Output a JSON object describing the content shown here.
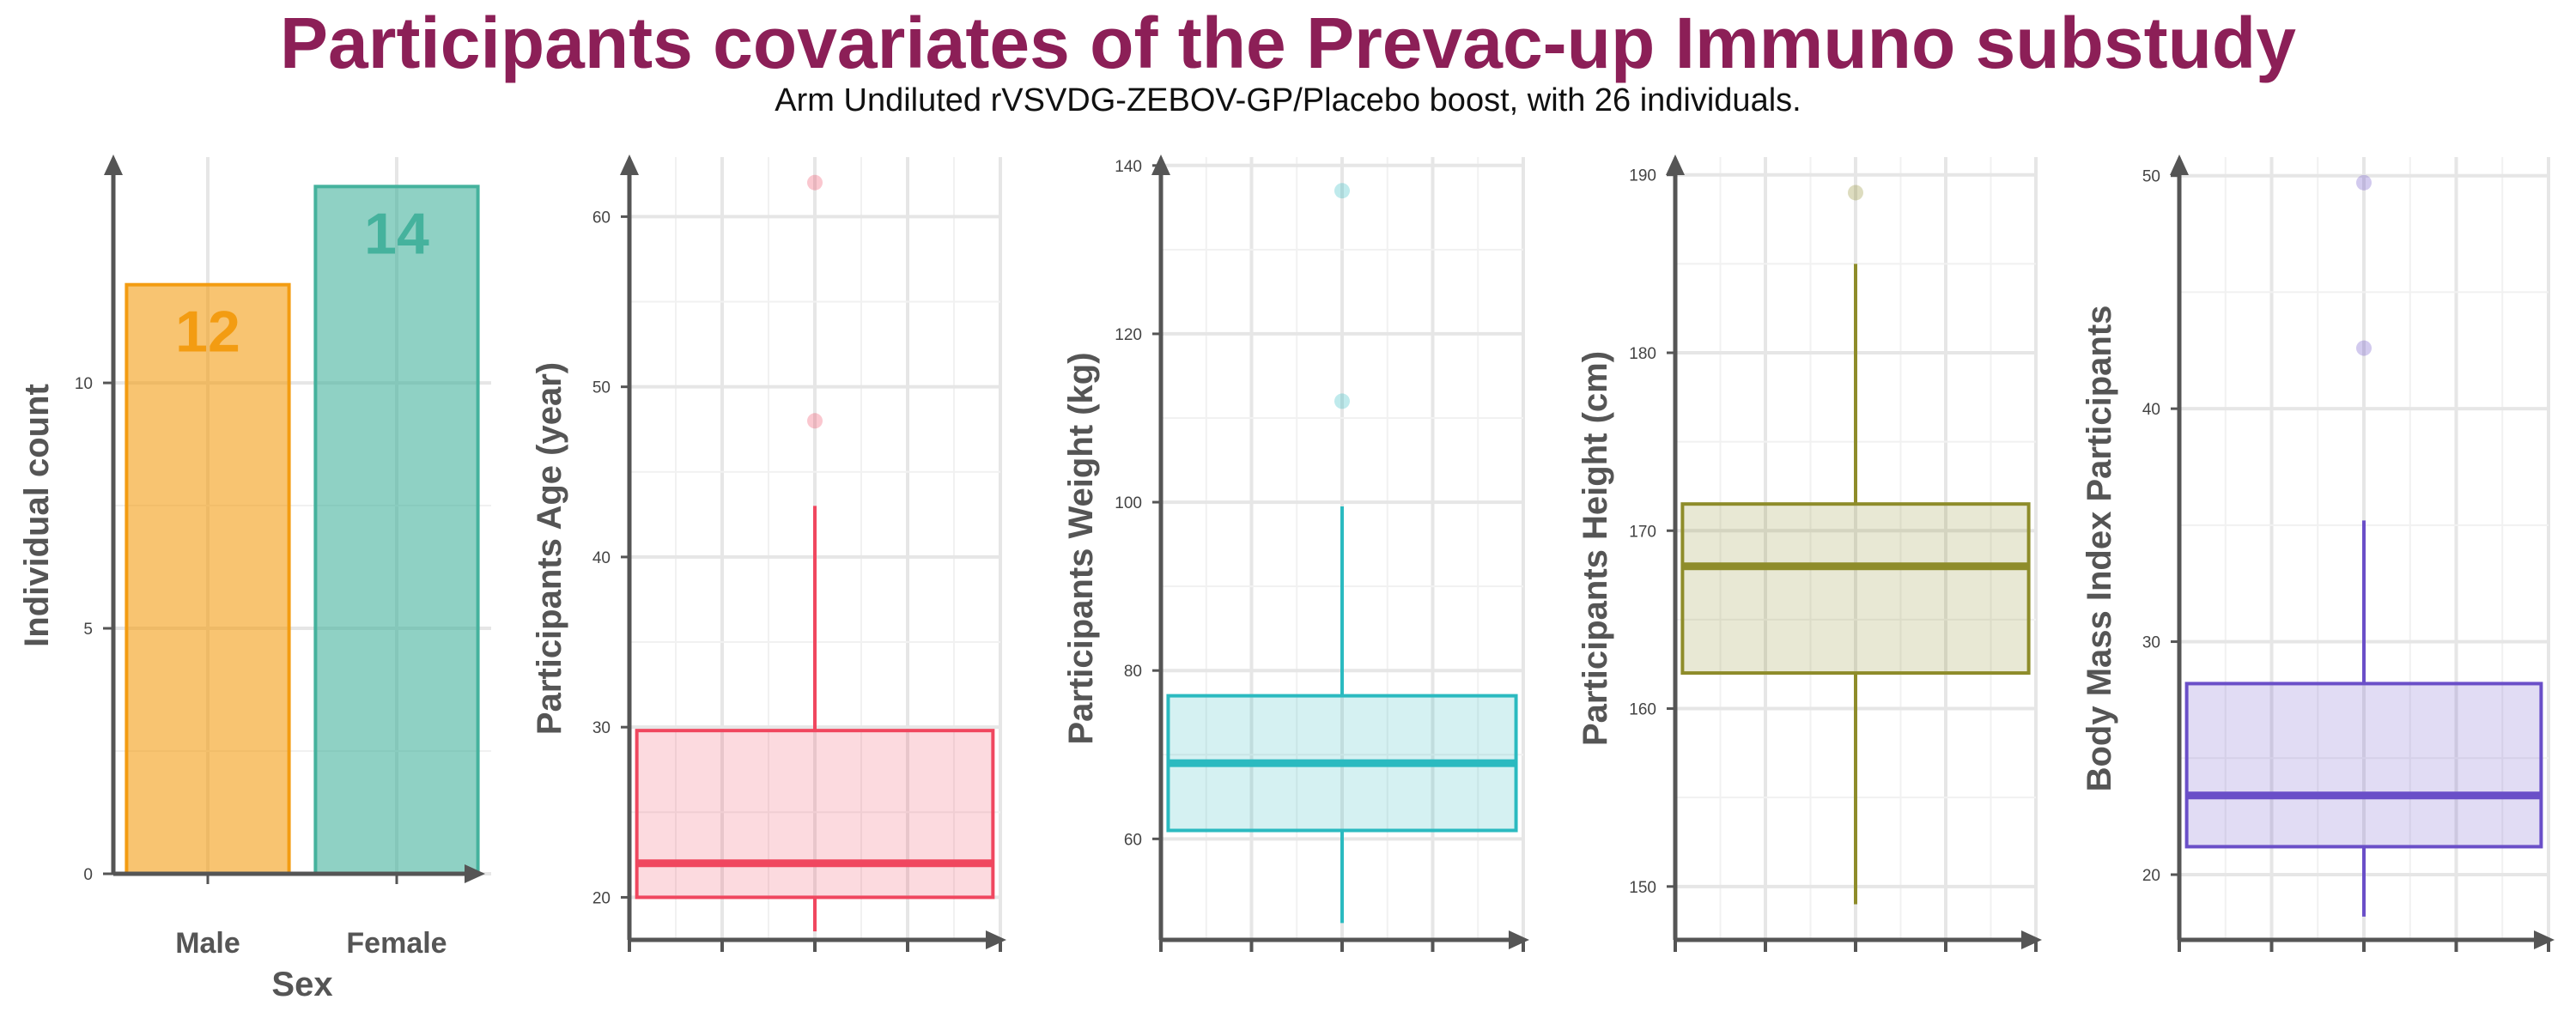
{
  "title": "Participants covariates of the Prevac-up Immuno substudy",
  "subtitle": "Arm Undiluted rVSVDG-ZEBOV-GP/Placebo boost, with 26 individuals.",
  "chart_data": [
    {
      "type": "bar",
      "xlabel": "Sex",
      "ylabel": "Individual count",
      "categories": [
        "Male",
        "Female"
      ],
      "values": [
        12,
        14
      ],
      "data_labels": [
        "12",
        "14"
      ],
      "colors": [
        "#f39c12",
        "#45b29d"
      ],
      "ylim": [
        0,
        14.6
      ],
      "yticks": [
        0,
        5,
        10
      ],
      "ytick_labels": [
        "0",
        "5",
        "10"
      ],
      "grid": true
    },
    {
      "type": "box",
      "ylabel": "Participants Age (year)",
      "color": "#f0475f",
      "ylim": [
        17.5,
        63.5
      ],
      "yticks": [
        20,
        30,
        40,
        50,
        60
      ],
      "ytick_labels": [
        "20",
        "30",
        "40",
        "50",
        "60"
      ],
      "box": {
        "whisker_low": 18,
        "q1": 20,
        "median": 22,
        "q3": 29.8,
        "whisker_high": 43
      },
      "outliers": [
        48,
        62
      ],
      "grid": true
    },
    {
      "type": "box",
      "ylabel": "Participants Weight (kg)",
      "color": "#2bbac0",
      "ylim": [
        48,
        141
      ],
      "yticks": [
        60,
        80,
        100,
        120,
        140
      ],
      "ytick_labels": [
        "60",
        "80",
        "100",
        "120",
        "140"
      ],
      "box": {
        "whisker_low": 50,
        "q1": 61,
        "median": 69,
        "q3": 77,
        "whisker_high": 99.5
      },
      "outliers": [
        112,
        137
      ],
      "grid": true
    },
    {
      "type": "box",
      "ylabel": "Participants Height (cm)",
      "color": "#8e8c2a",
      "ylim": [
        147,
        191
      ],
      "yticks": [
        150,
        160,
        170,
        180,
        190
      ],
      "ytick_labels": [
        "150",
        "160",
        "170",
        "180",
        "190"
      ],
      "box": {
        "whisker_low": 149,
        "q1": 162,
        "median": 168,
        "q3": 171.5,
        "whisker_high": 185
      },
      "outliers": [
        189
      ],
      "grid": true
    },
    {
      "type": "box",
      "ylabel": "Body Mass Index Participants",
      "color": "#6a4fc8",
      "ylim": [
        17.2,
        50.8
      ],
      "yticks": [
        20,
        30,
        40,
        50
      ],
      "ytick_labels": [
        "20",
        "30",
        "40",
        "50"
      ],
      "box": {
        "whisker_low": 18.2,
        "q1": 21.2,
        "median": 23.4,
        "q3": 28.2,
        "whisker_high": 35.2
      },
      "outliers": [
        42.6,
        49.7
      ],
      "grid": true
    }
  ]
}
